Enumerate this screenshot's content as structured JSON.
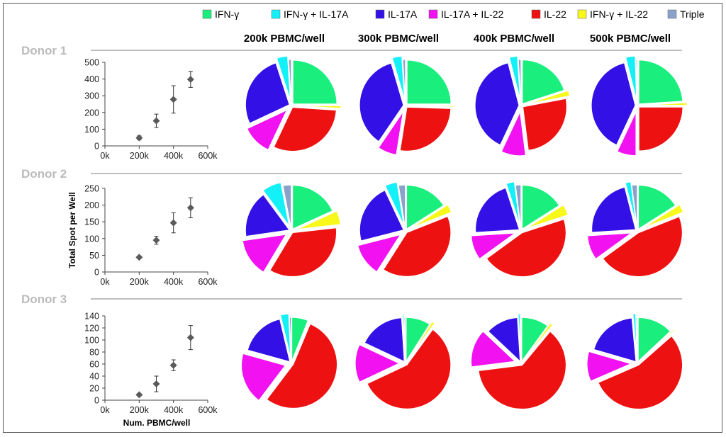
{
  "legend": [
    {
      "label": "IFN-γ",
      "color": "#1aef7e"
    },
    {
      "label": "IFN-γ + IL-17A",
      "color": "#14f0f8"
    },
    {
      "label": "IL-17A",
      "color": "#3311e6"
    },
    {
      "label": "IL-17A + IL-22",
      "color": "#f211f0"
    },
    {
      "label": "IL-22",
      "color": "#ee1111"
    },
    {
      "label": "IFN-γ + IL-22",
      "color": "#f8f81b"
    },
    {
      "label": "Triple",
      "color": "#8aa1c9"
    }
  ],
  "column_titles": [
    "200k PBMC/well",
    "300k PBMC/well",
    "400k PBMC/well",
    "500k PBMC/well"
  ],
  "donors": [
    "Donor 1",
    "Donor 2",
    "Donor 3"
  ],
  "ylabel": "Total Spot per Well",
  "xlabel": "Num. PBMC/well",
  "chart_data": [
    {
      "type": "scatter",
      "title": "Donor 1",
      "x_ticks": [
        "0k",
        "200k",
        "400k",
        "600k"
      ],
      "xlim": [
        0,
        600
      ],
      "y_ticks": [
        "0",
        "100",
        "200",
        "300",
        "400",
        "500"
      ],
      "ylim": [
        0,
        500
      ],
      "points": [
        {
          "x": 200,
          "y": 48,
          "err": 12
        },
        {
          "x": 300,
          "y": 150,
          "err": 40
        },
        {
          "x": 400,
          "y": 278,
          "err": 82
        },
        {
          "x": 500,
          "y": 398,
          "err": 48
        }
      ]
    },
    {
      "type": "scatter",
      "title": "Donor 2",
      "x_ticks": [
        "0k",
        "200k",
        "400k",
        "600k"
      ],
      "xlim": [
        0,
        600
      ],
      "y_ticks": [
        "0",
        "50",
        "100",
        "150",
        "200",
        "250"
      ],
      "ylim": [
        0,
        250
      ],
      "points": [
        {
          "x": 200,
          "y": 44,
          "err": 3
        },
        {
          "x": 300,
          "y": 95,
          "err": 12
        },
        {
          "x": 400,
          "y": 147,
          "err": 30
        },
        {
          "x": 500,
          "y": 192,
          "err": 30
        }
      ]
    },
    {
      "type": "scatter",
      "title": "Donor 3",
      "x_ticks": [
        "0k",
        "200k",
        "400k",
        "600k"
      ],
      "xlim": [
        0,
        600
      ],
      "y_ticks": [
        "0",
        "20",
        "40",
        "60",
        "80",
        "100",
        "120",
        "140"
      ],
      "ylim": [
        0,
        140
      ],
      "points": [
        {
          "x": 200,
          "y": 9,
          "err": 2
        },
        {
          "x": 300,
          "y": 27,
          "err": 13
        },
        {
          "x": 400,
          "y": 58,
          "err": 9
        },
        {
          "x": 500,
          "y": 104,
          "err": 20
        }
      ]
    },
    {
      "type": "pie",
      "donor": "Donor 1",
      "pies": [
        {
          "column": "200k PBMC/well",
          "slices": [
            {
              "label": "IFN-γ",
              "value": 25
            },
            {
              "label": "IFN-γ + IL-22",
              "value": 1
            },
            {
              "label": "IL-22",
              "value": 31
            },
            {
              "label": "IL-17A + IL-22",
              "value": 11
            },
            {
              "label": "IL-17A",
              "value": 27
            },
            {
              "label": "IFN-γ + IL-17A",
              "value": 4
            },
            {
              "label": "Triple",
              "value": 1
            }
          ]
        },
        {
          "column": "300k PBMC/well",
          "slices": [
            {
              "label": "IFN-γ",
              "value": 25
            },
            {
              "label": "IFN-γ + IL-22",
              "value": 0.5
            },
            {
              "label": "IL-22",
              "value": 27
            },
            {
              "label": "IL-17A + IL-22",
              "value": 7
            },
            {
              "label": "IL-17A",
              "value": 36
            },
            {
              "label": "IFN-γ + IL-17A",
              "value": 3.5
            },
            {
              "label": "Triple",
              "value": 1
            }
          ]
        },
        {
          "column": "400k PBMC/well",
          "slices": [
            {
              "label": "IFN-γ",
              "value": 20
            },
            {
              "label": "IFN-γ + IL-22",
              "value": 2
            },
            {
              "label": "IL-22",
              "value": 26
            },
            {
              "label": "IL-17A + IL-22",
              "value": 9
            },
            {
              "label": "IL-17A",
              "value": 39
            },
            {
              "label": "IFN-γ + IL-17A",
              "value": 3
            },
            {
              "label": "Triple",
              "value": 1
            }
          ]
        },
        {
          "column": "500k PBMC/well",
          "slices": [
            {
              "label": "IFN-γ",
              "value": 24
            },
            {
              "label": "IFN-γ + IL-22",
              "value": 1
            },
            {
              "label": "IL-22",
              "value": 25
            },
            {
              "label": "IL-17A + IL-22",
              "value": 7
            },
            {
              "label": "IL-17A",
              "value": 39
            },
            {
              "label": "IFN-γ + IL-17A",
              "value": 3.5
            },
            {
              "label": "Triple",
              "value": 0.5
            }
          ]
        }
      ]
    },
    {
      "type": "pie",
      "donor": "Donor 2",
      "pies": [
        {
          "column": "200k PBMC/well",
          "slices": [
            {
              "label": "IFN-γ",
              "value": 18
            },
            {
              "label": "IFN-γ + IL-22",
              "value": 5
            },
            {
              "label": "IL-22",
              "value": 35
            },
            {
              "label": "IL-17A + IL-22",
              "value": 14
            },
            {
              "label": "IL-17A",
              "value": 17
            },
            {
              "label": "IFN-γ + IL-17A",
              "value": 7
            },
            {
              "label": "Triple",
              "value": 3
            }
          ]
        },
        {
          "column": "300k PBMC/well",
          "slices": [
            {
              "label": "IFN-γ",
              "value": 16
            },
            {
              "label": "IFN-γ + IL-22",
              "value": 3
            },
            {
              "label": "IL-22",
              "value": 40
            },
            {
              "label": "IL-17A + IL-22",
              "value": 12
            },
            {
              "label": "IL-17A",
              "value": 22
            },
            {
              "label": "IFN-γ + IL-17A",
              "value": 4.5
            },
            {
              "label": "Triple",
              "value": 2.5
            }
          ]
        },
        {
          "column": "400k PBMC/well",
          "slices": [
            {
              "label": "IFN-γ",
              "value": 16
            },
            {
              "label": "IFN-γ + IL-22",
              "value": 4
            },
            {
              "label": "IL-22",
              "value": 45
            },
            {
              "label": "IL-17A + IL-22",
              "value": 9
            },
            {
              "label": "IL-17A",
              "value": 21
            },
            {
              "label": "IFN-γ + IL-17A",
              "value": 3
            },
            {
              "label": "Triple",
              "value": 2
            }
          ]
        },
        {
          "column": "500k PBMC/well",
          "slices": [
            {
              "label": "IFN-γ",
              "value": 16
            },
            {
              "label": "IFN-γ + IL-22",
              "value": 3
            },
            {
              "label": "IL-22",
              "value": 46
            },
            {
              "label": "IL-17A + IL-22",
              "value": 9
            },
            {
              "label": "IL-17A",
              "value": 22
            },
            {
              "label": "IFN-γ + IL-17A",
              "value": 2
            },
            {
              "label": "Triple",
              "value": 2
            }
          ]
        }
      ]
    },
    {
      "type": "pie",
      "donor": "Donor 3",
      "pies": [
        {
          "column": "200k PBMC/well",
          "slices": [
            {
              "label": "IFN-γ",
              "value": 6
            },
            {
              "label": "IFN-γ + IL-22",
              "value": 0.3
            },
            {
              "label": "IL-22",
              "value": 54
            },
            {
              "label": "IL-17A + IL-22",
              "value": 19
            },
            {
              "label": "IL-17A",
              "value": 17
            },
            {
              "label": "IFN-γ + IL-17A",
              "value": 3
            },
            {
              "label": "Triple",
              "value": 0.7
            }
          ]
        },
        {
          "column": "300k PBMC/well",
          "slices": [
            {
              "label": "IFN-γ",
              "value": 9
            },
            {
              "label": "IFN-γ + IL-22",
              "value": 1
            },
            {
              "label": "IL-22",
              "value": 58
            },
            {
              "label": "IL-17A + IL-22",
              "value": 14
            },
            {
              "label": "IL-17A",
              "value": 17
            },
            {
              "label": "IFN-γ + IL-17A",
              "value": 0.5
            },
            {
              "label": "Triple",
              "value": 0.5
            }
          ]
        },
        {
          "column": "400k PBMC/well",
          "slices": [
            {
              "label": "IFN-γ",
              "value": 10
            },
            {
              "label": "IFN-γ + IL-22",
              "value": 1
            },
            {
              "label": "IL-22",
              "value": 62
            },
            {
              "label": "IL-17A + IL-22",
              "value": 14
            },
            {
              "label": "IL-17A",
              "value": 12
            },
            {
              "label": "IFN-γ + IL-17A",
              "value": 0.7
            },
            {
              "label": "Triple",
              "value": 0.3
            }
          ]
        },
        {
          "column": "500k PBMC/well",
          "slices": [
            {
              "label": "IFN-γ",
              "value": 13
            },
            {
              "label": "IFN-γ + IL-22",
              "value": 0.5
            },
            {
              "label": "IL-22",
              "value": 55
            },
            {
              "label": "IL-17A + IL-22",
              "value": 11
            },
            {
              "label": "IL-17A",
              "value": 19
            },
            {
              "label": "IFN-γ + IL-17A",
              "value": 1
            },
            {
              "label": "Triple",
              "value": 0.5
            }
          ]
        }
      ]
    }
  ]
}
